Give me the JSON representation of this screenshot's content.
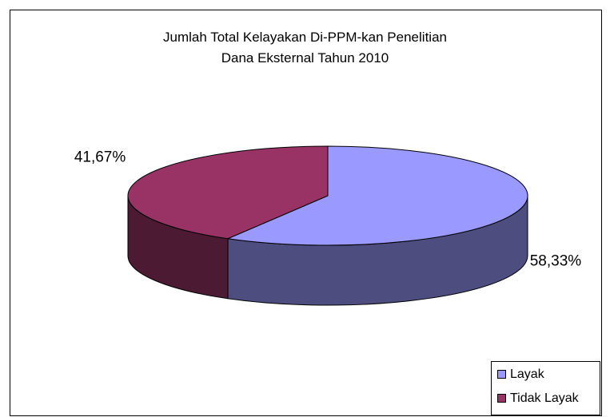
{
  "chart_data": {
    "type": "pie",
    "title": "Jumlah Total Kelayakan Di-PPM-kan Penelitian Dana Eksternal Tahun 2010",
    "categories": [
      "Layak",
      "Tidak Layak"
    ],
    "values": [
      58.33,
      41.67
    ],
    "value_labels": [
      "58,33%",
      "41,67%"
    ],
    "colors": [
      "#9999ff",
      "#993366"
    ],
    "legend": "bottom-right"
  }
}
